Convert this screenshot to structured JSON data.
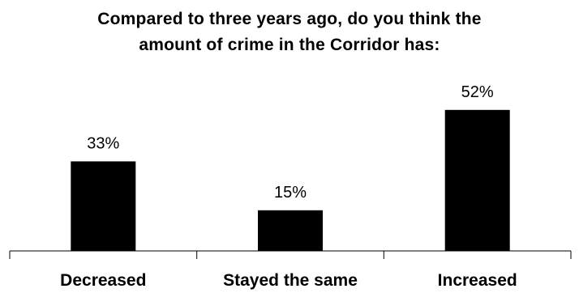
{
  "chart_data": {
    "type": "bar",
    "title_lines": [
      "Compared to three years ago, do you think the",
      "amount of crime in the Corridor has:"
    ],
    "categories": [
      "Decreased",
      "Stayed the same",
      "Increased"
    ],
    "values": [
      33,
      15,
      52
    ],
    "data_labels": [
      "33%",
      "15%",
      "52%"
    ],
    "xlabel": "",
    "ylabel": "",
    "ylim": [
      0,
      60
    ],
    "grid": false,
    "legend": "none",
    "bar_color": "#000000"
  }
}
